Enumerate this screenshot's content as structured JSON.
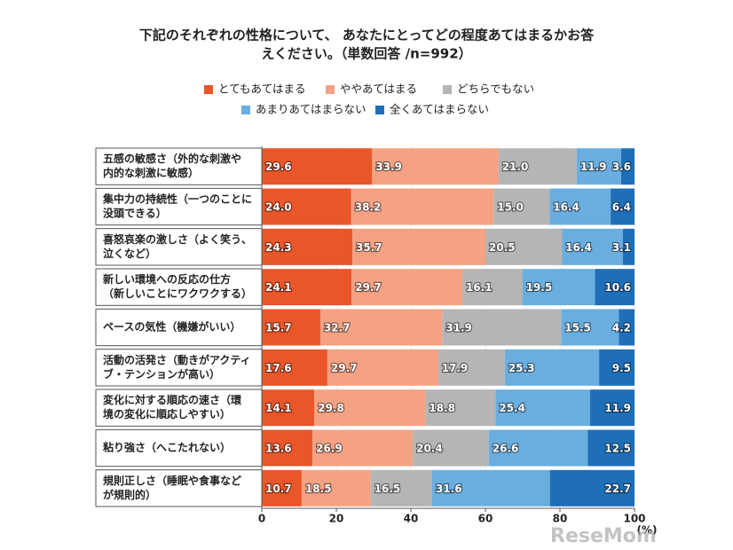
{
  "chart_data": {
    "type": "stacked-bar-horizontal",
    "title": [
      "下記のそれぞれの性格について、 あなたにとってどの程度あてはまるかお答",
      "えください。（単数回答 /n=992）"
    ],
    "categories": [
      [
        "五感の敏感さ（外的な刺激や",
        "内的な刺激に敏感）"
      ],
      [
        "集中力の持続性（一つのことに",
        "没頭できる）"
      ],
      [
        "喜怒哀楽の激しさ（よく笑う、",
        "泣くなど）"
      ],
      [
        "新しい環境への反応の仕方",
        "（新しいことにワクワクする）"
      ],
      [
        "ペースの気性（機嫌がいい）"
      ],
      [
        "活動の活発さ（動きがアクティ",
        "ブ・テンションが高い）"
      ],
      [
        "変化に対する順応の速さ（環",
        "境の変化に順応しやすい）"
      ],
      [
        "粘り強さ（へこたれない）"
      ],
      [
        "規則正しさ（睡眠や食事など",
        "が規則的）"
      ]
    ],
    "series": [
      {
        "name": "とてもあてはまる",
        "color": "#e8562a",
        "values": [
          29.6,
          24.0,
          24.3,
          24.1,
          15.7,
          17.6,
          14.1,
          13.6,
          10.7
        ],
        "value_labels": [
          "29.6",
          "24.0",
          "24.3",
          "24.1",
          "15.7",
          "17.6",
          "14.1",
          "13.6",
          "10.7"
        ]
      },
      {
        "name": "ややあてはまる",
        "color": "#f4a283",
        "values": [
          33.9,
          38.2,
          35.7,
          29.7,
          32.7,
          29.7,
          29.8,
          26.9,
          18.5
        ],
        "value_labels": [
          "33.9",
          "38.2",
          "35.7",
          "29.7",
          "32.7",
          "29.7",
          "29.8",
          "26.9",
          "18.5"
        ]
      },
      {
        "name": "どちらでもない",
        "color": "#b5b5b5",
        "values": [
          21.0,
          15.0,
          20.5,
          16.1,
          31.9,
          17.9,
          18.8,
          20.4,
          16.5
        ],
        "value_labels": [
          "21.0",
          "15.0",
          "20.5",
          "16.1",
          "31.9",
          "17.9",
          "18.8",
          "20.4",
          "16.5"
        ]
      },
      {
        "name": "あまりあてはまらない",
        "color": "#6aaedf",
        "values": [
          11.9,
          16.4,
          16.4,
          19.5,
          15.5,
          25.3,
          25.4,
          26.6,
          31.6
        ],
        "value_labels": [
          "11.9",
          "16.4",
          "16.4",
          "19.5",
          "15.5",
          "25.3",
          "25.4",
          "26.6",
          "31.6"
        ]
      },
      {
        "name": "全くあてはまらない",
        "color": "#1f6fb8",
        "values": [
          3.6,
          6.4,
          3.1,
          10.6,
          4.2,
          9.5,
          11.9,
          12.5,
          22.7
        ],
        "value_labels": [
          "3.6",
          "6.4",
          "3.1",
          "10.6",
          "4.2",
          "9.5",
          "11.9",
          "12.5",
          "22.7"
        ]
      }
    ],
    "xlim": [
      0,
      100
    ],
    "xticks": [
      0,
      20,
      40,
      60,
      80,
      100
    ],
    "x_unit": "(%)",
    "grid": true,
    "watermark": "ReseMom"
  }
}
